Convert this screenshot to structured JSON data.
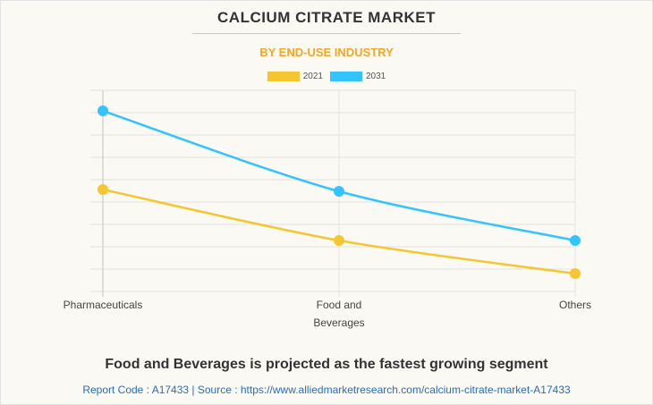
{
  "title": "CALCIUM CITRATE MARKET",
  "subtitle": "BY END-USE INDUSTRY",
  "footer": {
    "headline": "Food and Beverages is projected as the fastest growing segment",
    "source": "Report Code : A17433  |  Source : https://www.alliedmarketresearch.com/calcium-citrate-market-A17433"
  },
  "colors": {
    "series_2021": "#f5c630",
    "series_2031": "#33c3ff",
    "subtitle": "#f5a623",
    "source_link": "#2a6ebb"
  },
  "chart_data": {
    "type": "line",
    "title": "CALCIUM CITRATE MARKET",
    "subtitle": "BY END-USE INDUSTRY",
    "xlabel": "",
    "ylabel": "",
    "categories": [
      "Pharmaceuticals",
      "Food and\nBeverages",
      "Others"
    ],
    "category_lines": [
      [
        "Pharmaceuticals"
      ],
      [
        "Food and",
        "Beverages"
      ],
      [
        "Others"
      ]
    ],
    "ylim": [
      0,
      9
    ],
    "y_ticks_labeled": false,
    "grid": true,
    "legend_position": "top",
    "series": [
      {
        "name": "2021",
        "color": "#f5c630",
        "values": [
          4.56,
          2.28,
          0.8
        ]
      },
      {
        "name": "2031",
        "color": "#33c3ff",
        "values": [
          8.08,
          4.48,
          2.28
        ]
      }
    ]
  }
}
